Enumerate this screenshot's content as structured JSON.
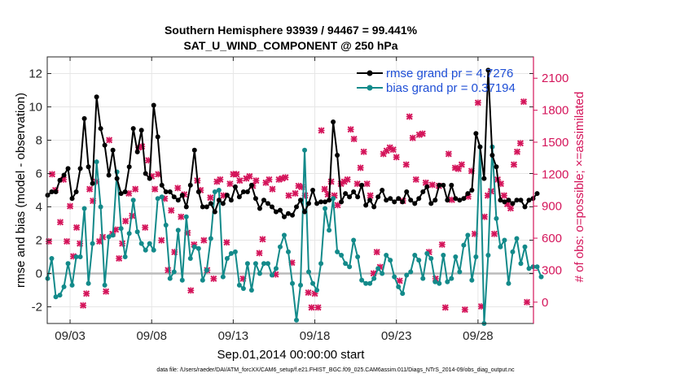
{
  "chart_data": {
    "type": "line",
    "title": "Southern Hemisphere 93939 / 94467 = 99.441%",
    "subtitle": "SAT_U_WIND_COMPONENT @ 250 hPa",
    "xlabel": "Sep.01,2014 00:00:00 start",
    "ylabel": "rmse and bias (model - observation)",
    "ylabel_right": "# of obs: o=possible; ×=assimilated",
    "footnote": "data file: /Users/raeder/DAI/ATM_forcXX/CAM6_setup/f.e21.FHIST_BGC.f09_025.CAM6assim.011/Diags_NTrS_2014-09/obs_diag_output.nc",
    "xlim": [
      1.6,
      31.4
    ],
    "ylim": [
      -3,
      13
    ],
    "ylim_right": [
      -200,
      2300
    ],
    "x_ticks": [
      3,
      8,
      13,
      18,
      23,
      28
    ],
    "x_tick_labels": [
      "09/03",
      "09/08",
      "09/13",
      "09/18",
      "09/23",
      "09/28"
    ],
    "y_ticks": [
      -2,
      0,
      2,
      4,
      6,
      8,
      10,
      12
    ],
    "y_tick_labels": [
      "-2",
      "0",
      "2",
      "4",
      "6",
      "8",
      "10",
      "12"
    ],
    "y_right_ticks": [
      0,
      300,
      600,
      900,
      1200,
      1500,
      1800,
      2100
    ],
    "y_right_tick_labels": [
      "0",
      "300",
      "600",
      "900",
      "1200",
      "1500",
      "1800",
      "2100"
    ],
    "grid": true,
    "legend_position": "top-right",
    "zero_line": 0,
    "colors": {
      "rmse": "#000000",
      "bias": "#138a8a",
      "obs": "#d4145a",
      "axis_right": "#d4145a",
      "legend_text": "#1f4fd6",
      "zero_line": "#bbbbbb",
      "grid": "#e6e6e6"
    },
    "series": [
      {
        "name": "rmse grand pr = 4.7276",
        "marker": "circle",
        "axis": "left",
        "x_start": 1.625,
        "x_step": 0.25,
        "values": [
          4.7,
          4.9,
          4.9,
          5.6,
          5.9,
          6.3,
          4.5,
          4.9,
          6.3,
          9.3,
          6.4,
          5.4,
          10.6,
          8.7,
          7.7,
          5.9,
          7.4,
          5.7,
          4.8,
          4.9,
          6.4,
          8.7,
          7.3,
          8.6,
          6.0,
          5.7,
          10.1,
          8.2,
          5.3,
          4.9,
          4.9,
          4.6,
          4.4,
          4.7,
          4.0,
          5.3,
          7.4,
          4.9,
          4.0,
          4.0,
          4.2,
          3.7,
          4.4,
          4.2,
          4.7,
          4.4,
          5.2,
          4.6,
          4.9,
          4.9,
          5.3,
          4.5,
          3.9,
          4.4,
          4.2,
          4.0,
          3.7,
          3.8,
          3.4,
          3.6,
          3.5,
          4.0,
          4.4,
          3.7,
          4.2,
          5.0,
          4.2,
          4.3,
          4.3,
          4.4,
          9.1,
          7.1,
          4.3,
          4.8,
          4.6,
          4.9,
          4.6,
          5.3,
          4.1,
          4.4,
          4.0,
          4.6,
          5.0,
          4.4,
          4.5,
          4.3,
          4.5,
          4.3,
          4.9,
          4.4,
          4.2,
          4.5,
          4.9,
          5.2,
          4.2,
          4.4,
          5.3,
          5.3,
          4.4,
          5.3,
          4.5,
          4.4,
          4.5,
          4.8,
          5.0,
          8.4,
          7.6,
          5.7,
          12.2,
          7.1,
          6.4,
          4.4,
          4.3,
          4.4,
          4.2,
          4.4,
          4.4,
          4.0,
          4.4,
          4.5,
          4.8
        ]
      },
      {
        "name": "bias grand pr = 0.37194",
        "marker": "circle",
        "axis": "left",
        "x_start": 1.625,
        "x_step": 0.25,
        "values": [
          -0.3,
          0.9,
          -1.4,
          -1.3,
          -0.8,
          0.6,
          -0.7,
          1.0,
          1.0,
          3.9,
          -0.6,
          1.8,
          6.7,
          4.0,
          -0.7,
          2.2,
          2.3,
          6.1,
          2.7,
          1.0,
          2.4,
          4.4,
          2.5,
          1.8,
          1.4,
          1.8,
          1.4,
          4.5,
          4.6,
          2.9,
          -0.3,
          0.1,
          2.6,
          -0.4,
          3.4,
          0.9,
          1.6,
          1.5,
          -0.4,
          0.2,
          2.1,
          4.9,
          5.0,
          -0.2,
          0.9,
          1.2,
          1.3,
          -0.7,
          -0.9,
          0.6,
          -1.0,
          0.6,
          0.0,
          0.6,
          0.6,
          -0.1,
          0.3,
          1.6,
          2.3,
          1.3,
          -0.6,
          -2.8,
          -0.7,
          7.4,
          0.1,
          -0.6,
          -1.0,
          0.6,
          3.9,
          2.6,
          4.5,
          1.3,
          1.1,
          0.6,
          0.4,
          2.0,
          1.0,
          -0.4,
          -0.6,
          -0.6,
          -0.3,
          0.3,
          0.0,
          1.1,
          0.8,
          -0.2,
          -0.8,
          -1.2,
          -0.1,
          0.1,
          1.1,
          0.8,
          -0.3,
          1.2,
          0.9,
          -0.5,
          -0.6,
          1.1,
          -0.5,
          -0.3,
          1.0,
          0.1,
          1.7,
          2.3,
          -0.4,
          1.0,
          7.6,
          -3.0,
          1.1,
          7.6,
          3.3,
          1.6,
          2.0,
          -0.6,
          1.3,
          2.1,
          0.6,
          1.6,
          0.3,
          0.4,
          0.4,
          -0.2
        ]
      },
      {
        "name": "obs assimilated",
        "marker": "x",
        "axis": "right",
        "points": [
          [
            1.7,
            570
          ],
          [
            1.9,
            1200
          ],
          [
            2.1,
            1050
          ],
          [
            2.4,
            750
          ],
          [
            2.6,
            1150
          ],
          [
            2.8,
            570
          ],
          [
            3.0,
            900
          ],
          [
            3.2,
            430
          ],
          [
            3.4,
            700
          ],
          [
            3.6,
            550
          ],
          [
            3.8,
            -30
          ],
          [
            4.0,
            80
          ],
          [
            4.2,
            1060
          ],
          [
            4.4,
            950
          ],
          [
            4.6,
            1130
          ],
          [
            4.8,
            570
          ],
          [
            5.0,
            610
          ],
          [
            5.2,
            100
          ],
          [
            5.4,
            1520
          ],
          [
            5.6,
            640
          ],
          [
            5.8,
            680
          ],
          [
            6.0,
            410
          ],
          [
            6.2,
            550
          ],
          [
            6.4,
            760
          ],
          [
            6.6,
            1020
          ],
          [
            6.8,
            810
          ],
          [
            7.0,
            1060
          ],
          [
            7.2,
            1450
          ],
          [
            7.4,
            1460
          ],
          [
            7.6,
            700
          ],
          [
            7.8,
            1330
          ],
          [
            8.0,
            1180
          ],
          [
            8.2,
            1060
          ],
          [
            8.4,
            1200
          ],
          [
            8.6,
            580
          ],
          [
            8.8,
            970
          ],
          [
            9.0,
            300
          ],
          [
            9.2,
            860
          ],
          [
            9.4,
            470
          ],
          [
            9.6,
            1070
          ],
          [
            9.8,
            800
          ],
          [
            10.0,
            1010
          ],
          [
            10.2,
            650
          ],
          [
            10.4,
            110
          ],
          [
            10.6,
            540
          ],
          [
            10.8,
            1140
          ],
          [
            11.0,
            1050
          ],
          [
            11.2,
            580
          ],
          [
            11.4,
            300
          ],
          [
            11.6,
            980
          ],
          [
            11.8,
            220
          ],
          [
            12.0,
            1130
          ],
          [
            12.2,
            1150
          ],
          [
            12.4,
            1000
          ],
          [
            12.6,
            560
          ],
          [
            12.8,
            1110
          ],
          [
            13.0,
            1200
          ],
          [
            13.2,
            1200
          ],
          [
            13.4,
            1140
          ],
          [
            13.6,
            220
          ],
          [
            13.8,
            1160
          ],
          [
            14.0,
            1180
          ],
          [
            14.2,
            1090
          ],
          [
            14.4,
            1140
          ],
          [
            14.6,
            460
          ],
          [
            14.8,
            590
          ],
          [
            15.0,
            1120
          ],
          [
            15.2,
            1150
          ],
          [
            15.4,
            1060
          ],
          [
            15.6,
            260
          ],
          [
            15.8,
            1150
          ],
          [
            16.0,
            1160
          ],
          [
            16.2,
            1170
          ],
          [
            16.4,
            1000
          ],
          [
            16.6,
            370
          ],
          [
            16.8,
            1020
          ],
          [
            17.0,
            1090
          ],
          [
            17.2,
            1080
          ],
          [
            17.4,
            1000
          ],
          [
            17.6,
            90
          ],
          [
            17.8,
            -50
          ],
          [
            18.0,
            80
          ],
          [
            18.2,
            -50
          ],
          [
            18.4,
            1610
          ],
          [
            18.6,
            1060
          ],
          [
            18.8,
            1010
          ],
          [
            19.0,
            1130
          ],
          [
            19.2,
            1000
          ],
          [
            19.4,
            910
          ],
          [
            19.6,
            1110
          ],
          [
            19.8,
            1130
          ],
          [
            20.0,
            1150
          ],
          [
            20.2,
            1620
          ],
          [
            20.4,
            1530
          ],
          [
            20.6,
            1110
          ],
          [
            20.8,
            1260
          ],
          [
            21.0,
            1410
          ],
          [
            21.2,
            1110
          ],
          [
            21.4,
            1000
          ],
          [
            21.6,
            270
          ],
          [
            21.8,
            470
          ],
          [
            22.0,
            330
          ],
          [
            22.2,
            1390
          ],
          [
            22.4,
            1420
          ],
          [
            22.6,
            1450
          ],
          [
            22.8,
            1430
          ],
          [
            23.0,
            1360
          ],
          [
            23.2,
            200
          ],
          [
            23.4,
            950
          ],
          [
            23.6,
            1290
          ],
          [
            23.8,
            1740
          ],
          [
            24.0,
            1540
          ],
          [
            24.2,
            1150
          ],
          [
            24.4,
            1570
          ],
          [
            24.6,
            1580
          ],
          [
            24.8,
            1120
          ],
          [
            25.0,
            470
          ],
          [
            25.2,
            1100
          ],
          [
            25.4,
            220
          ],
          [
            25.6,
            1090
          ],
          [
            25.8,
            540
          ],
          [
            26.0,
            -50
          ],
          [
            26.2,
            1390
          ],
          [
            26.4,
            960
          ],
          [
            26.6,
            1260
          ],
          [
            26.8,
            1250
          ],
          [
            27.0,
            1290
          ],
          [
            27.2,
            -70
          ],
          [
            27.4,
            990
          ],
          [
            27.6,
            1230
          ],
          [
            27.8,
            640
          ],
          [
            28.0,
            1870
          ],
          [
            28.2,
            -40
          ],
          [
            28.4,
            800
          ],
          [
            28.6,
            1000
          ],
          [
            28.8,
            1040
          ],
          [
            29.0,
            640
          ],
          [
            29.2,
            1150
          ],
          [
            29.4,
            1110
          ],
          [
            29.6,
            1000
          ],
          [
            29.8,
            920
          ],
          [
            30.0,
            880
          ],
          [
            30.2,
            1290
          ],
          [
            30.4,
            1410
          ],
          [
            30.6,
            1490
          ],
          [
            30.8,
            1880
          ],
          [
            31.0,
            0
          ]
        ]
      }
    ]
  }
}
